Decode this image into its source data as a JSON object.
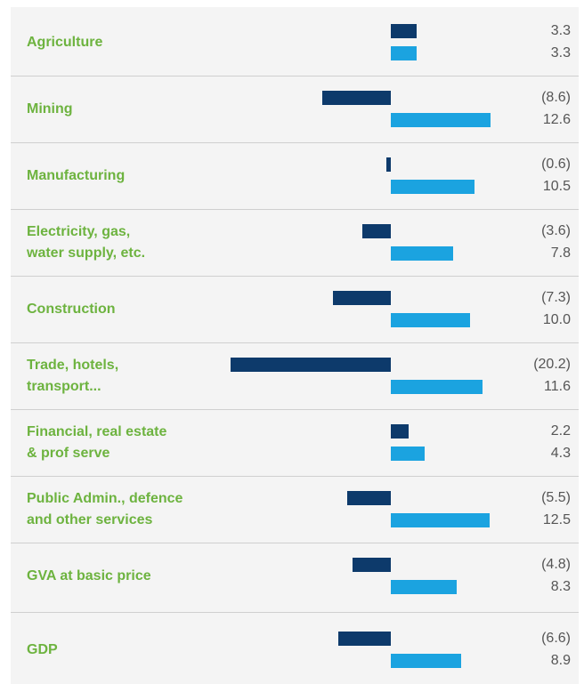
{
  "chart_data": {
    "type": "bar",
    "categories": [
      "Agriculture",
      "Mining",
      "Manufacturing",
      "Electricity, gas,\nwater supply, etc.",
      "Construction",
      "Trade, hotels,\ntransport...",
      "Financial, real estate\n& prof serve",
      "Public Admin., defence\nand other services",
      "GVA at basic price",
      "GDP"
    ],
    "series": [
      {
        "color": "#0d3a6b",
        "values": [
          3.3,
          -8.6,
          -0.6,
          -3.6,
          -7.3,
          -20.2,
          2.2,
          -5.5,
          -4.8,
          -6.6
        ],
        "value_labels": [
          "3.3",
          "(8.6)",
          "(0.6)",
          "(3.6)",
          "(7.3)",
          "(20.2)",
          "2.2",
          "(5.5)",
          "(4.8)",
          "(6.6)"
        ]
      },
      {
        "color": "#1ba3e0",
        "values": [
          3.3,
          12.6,
          10.5,
          7.8,
          10.0,
          11.6,
          4.3,
          12.5,
          8.3,
          8.9
        ],
        "value_labels": [
          "3.3",
          "12.6",
          "10.5",
          "7.8",
          "10.0",
          "11.6",
          "4.3",
          "12.5",
          "8.3",
          "8.9"
        ]
      }
    ]
  }
}
